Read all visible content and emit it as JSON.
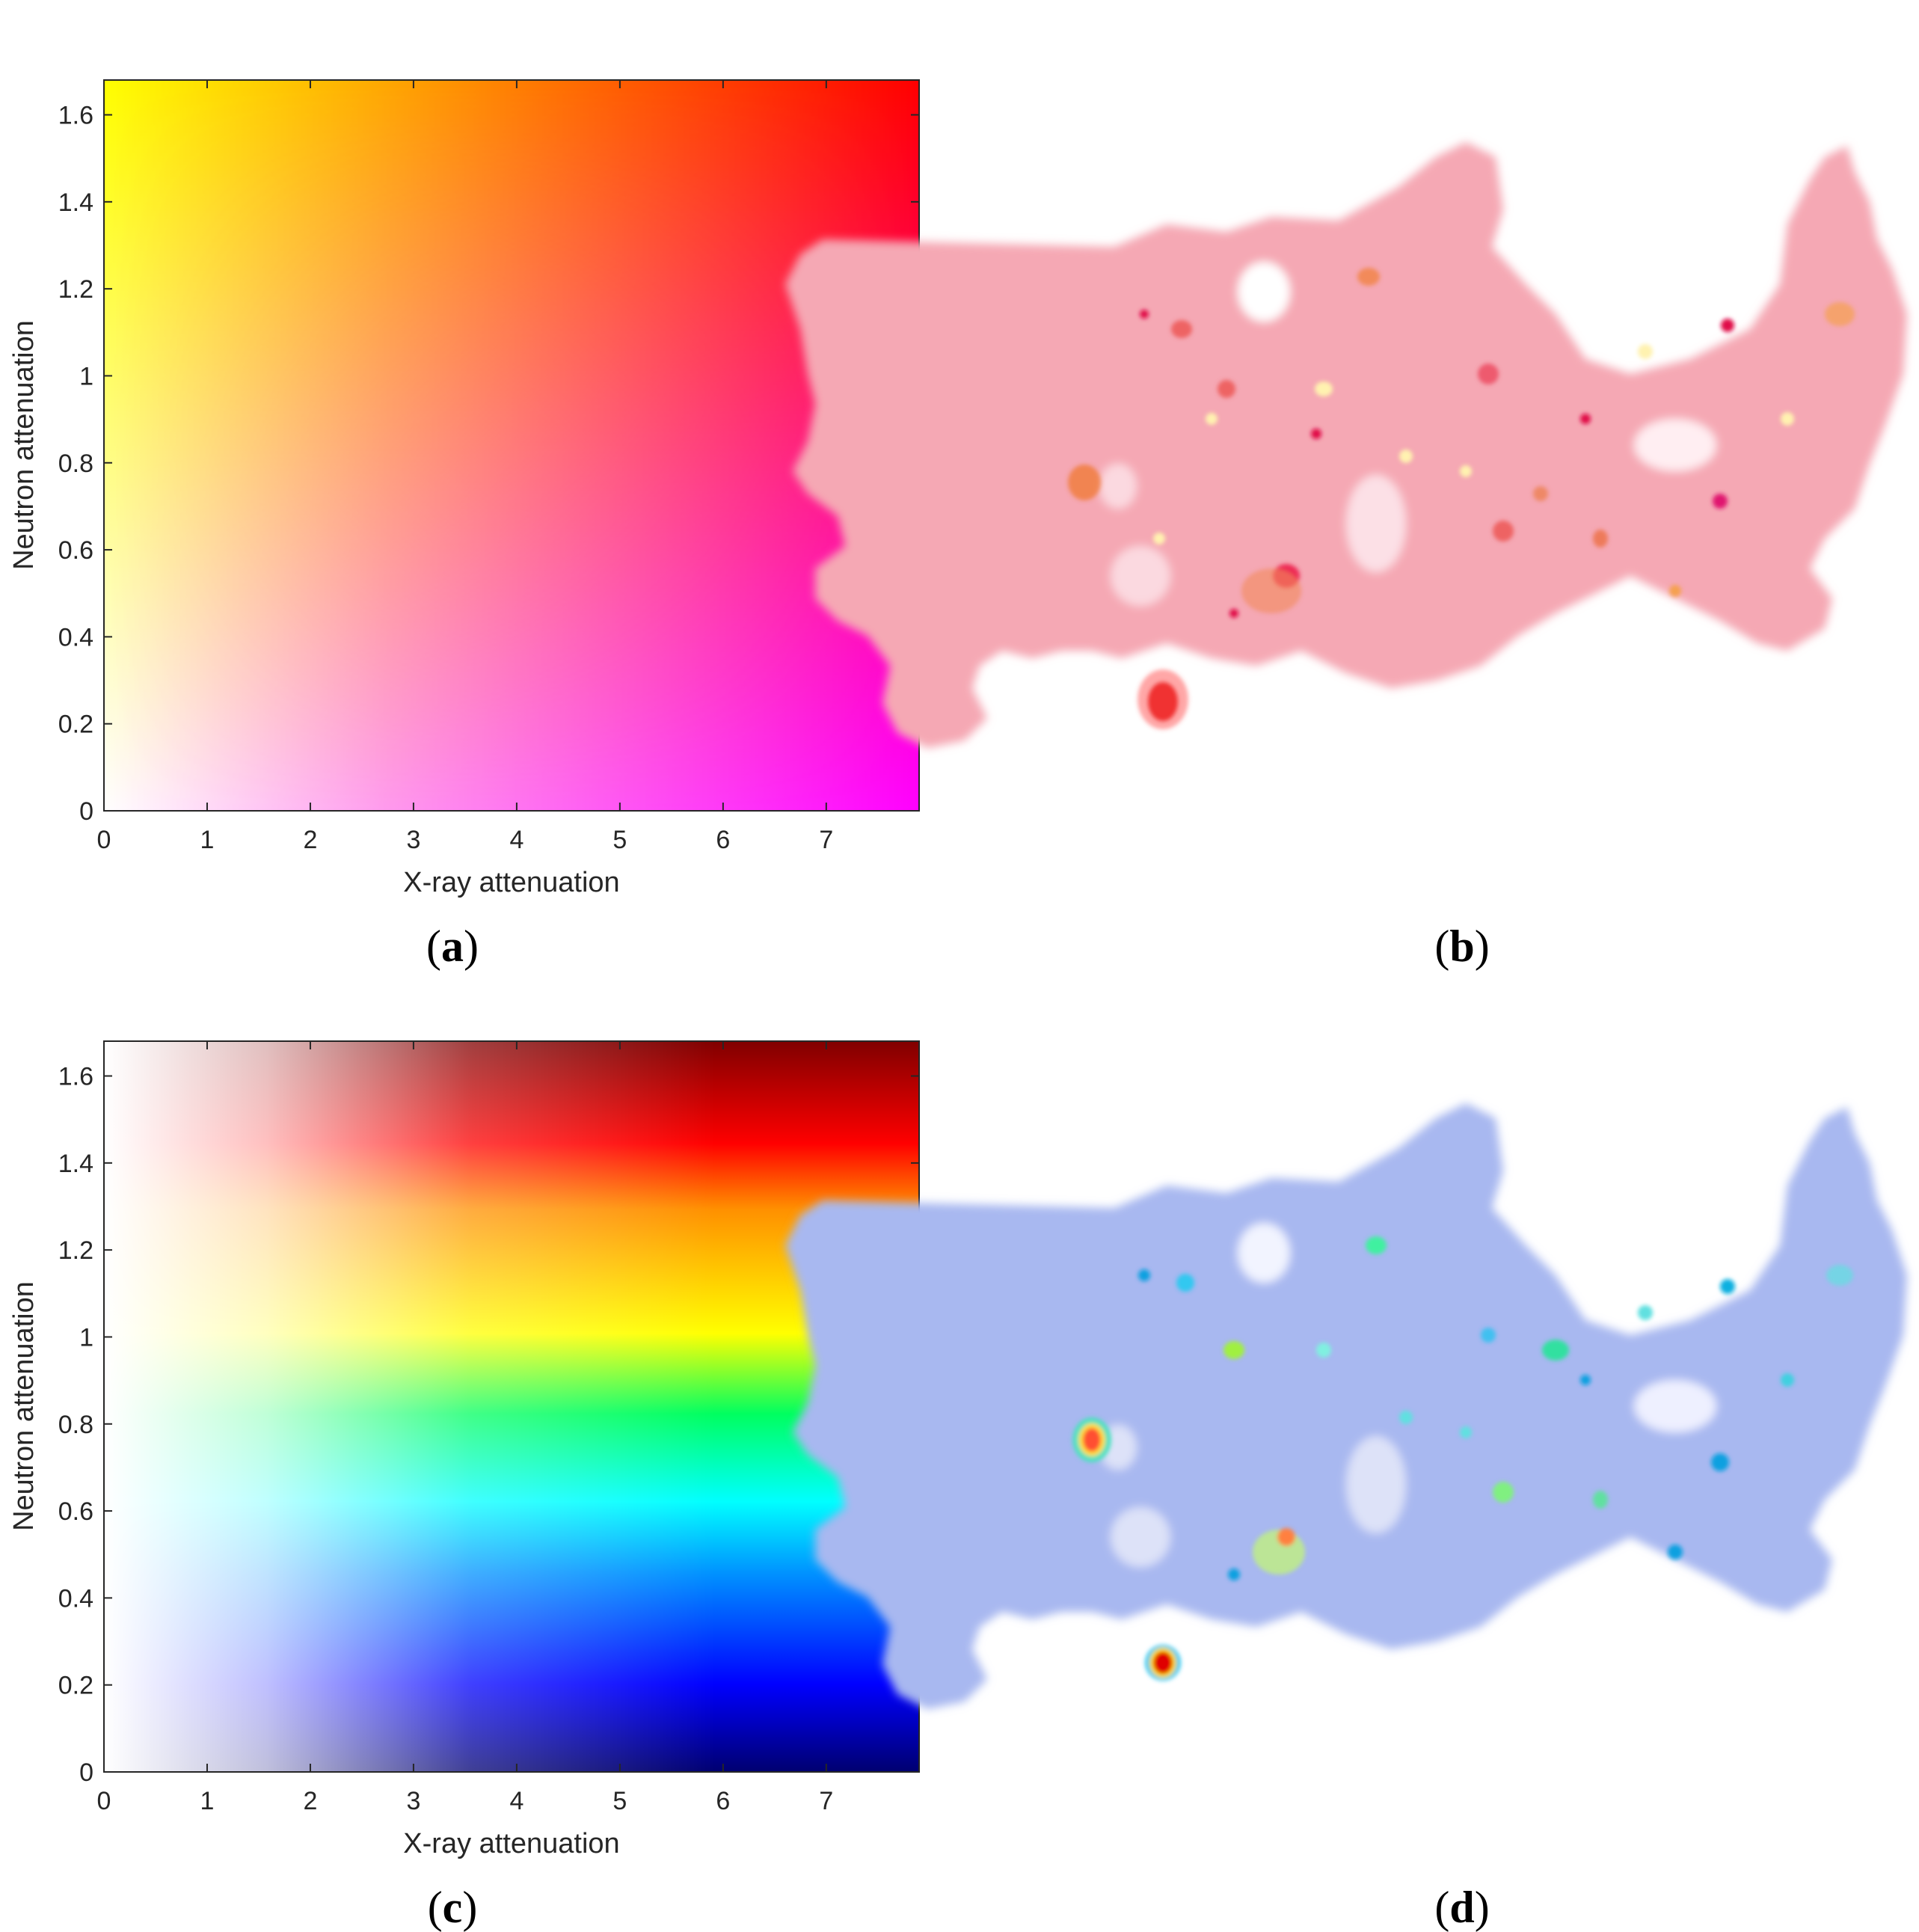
{
  "chart_data": [
    {
      "panel": "a",
      "type": "heatmap",
      "colormap": "2D legend: x → red/magenta hue strength, y → yellow→red shift; white at origin",
      "xlabel": "X-ray attenuation",
      "ylabel": "Neutron attenuation",
      "xlim": [
        0,
        7.9
      ],
      "ylim": [
        0,
        1.68
      ],
      "xticks": [
        "0",
        "1",
        "2",
        "3",
        "4",
        "5",
        "6",
        "7"
      ],
      "yticks": [
        "0",
        "0.2",
        "0.4",
        "0.6",
        "0.8",
        "1",
        "1.2",
        "1.4",
        "1.6"
      ],
      "corner_colors": {
        "bottom_left": "#ffffff",
        "top_left": "#ffff00",
        "top_right": "#ff0000",
        "bottom_right": "#ff00ff"
      },
      "grid": false
    },
    {
      "panel": "c",
      "type": "heatmap",
      "colormap": "2D legend: hue by neutron attenuation (blue→cyan→green→yellow→red→dark red), saturation by X-ray attenuation",
      "xlabel": "X-ray attenuation",
      "ylabel": "Neutron attenuation",
      "xlim": [
        0,
        7.9
      ],
      "ylim": [
        0,
        1.68
      ],
      "xticks": [
        "0",
        "1",
        "2",
        "3",
        "4",
        "5",
        "6",
        "7"
      ],
      "yticks": [
        "0",
        "0.2",
        "0.4",
        "0.6",
        "0.8",
        "1",
        "1.2",
        "1.4",
        "1.6"
      ],
      "hue_stops": [
        {
          "y": 0.0,
          "color": "#000070"
        },
        {
          "y": 0.2,
          "color": "#0000ff"
        },
        {
          "y": 0.45,
          "color": "#0090ff"
        },
        {
          "y": 0.62,
          "color": "#00ffff"
        },
        {
          "y": 0.82,
          "color": "#00ff60"
        },
        {
          "y": 1.0,
          "color": "#ffff00"
        },
        {
          "y": 1.3,
          "color": "#ff9000"
        },
        {
          "y": 1.45,
          "color": "#ff0000"
        },
        {
          "y": 1.68,
          "color": "#800000"
        }
      ],
      "grid": false
    }
  ],
  "panels": {
    "a": {
      "label": "a"
    },
    "b": {
      "label": "b",
      "image": "fused neutron/X-ray tomography slice rendered with colormap (a): pink sample with yellow, orange and red inclusions"
    },
    "c": {
      "label": "c"
    },
    "d": {
      "label": "d",
      "image": "fused neutron/X-ray tomography slice rendered with colormap (c): light-blue sample with cyan, green, yellow and red inclusions"
    }
  },
  "colors": {
    "sample_b": "#f5a8b4",
    "sample_d": "#a8b8f0",
    "axis": "#262626"
  }
}
